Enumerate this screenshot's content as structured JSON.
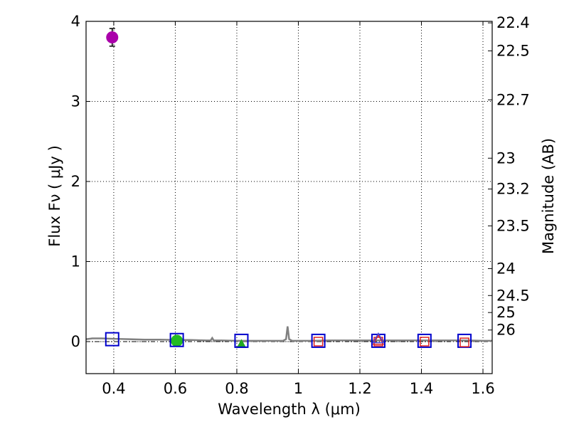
{
  "chart_data": {
    "type": "scatter",
    "title": "",
    "xlabel": "Wavelength  λ (μm)",
    "ylabel": "Flux  Fν  ( μJy )",
    "ylabel2": "Magnitude (AB)",
    "xlim": [
      0.31,
      1.63
    ],
    "ylim": [
      -0.4,
      4.0
    ],
    "grid": true,
    "x_ticks": [
      0.4,
      0.6,
      0.8,
      1.0,
      1.2,
      1.4,
      1.6
    ],
    "x_tick_labels": [
      "0.4",
      "0.6",
      "0.8",
      "1",
      "1.2",
      "1.4",
      "1.6"
    ],
    "y_ticks": [
      0,
      1,
      2,
      3,
      4
    ],
    "y_tick_labels": [
      "0",
      "1",
      "2",
      "3",
      "4"
    ],
    "y2_ticks": [
      22.4,
      22.5,
      22.7,
      23,
      23.2,
      23.5,
      24,
      24.5,
      25,
      26
    ],
    "y2_tick_labels": [
      "22.4",
      "22.5",
      "22.7",
      "23",
      "23.2",
      "23.5",
      "24",
      "24.5",
      "25",
      "26"
    ],
    "zero_reference_line": 0,
    "series": [
      {
        "name": "model spectrum",
        "kind": "line",
        "color": "#808080",
        "x": [
          0.31,
          0.33,
          0.36,
          0.4,
          0.45,
          0.5,
          0.55,
          0.6,
          0.65,
          0.7,
          0.715,
          0.72,
          0.725,
          0.75,
          0.8,
          0.85,
          0.9,
          0.95,
          0.96,
          0.965,
          0.97,
          0.98,
          1.0,
          1.05,
          1.1,
          1.15,
          1.2,
          1.25,
          1.3,
          1.35,
          1.4,
          1.45,
          1.5,
          1.55,
          1.6,
          1.63
        ],
        "y": [
          0.03,
          0.04,
          0.04,
          0.035,
          0.03,
          0.025,
          0.025,
          0.02,
          0.02,
          0.015,
          0.015,
          0.045,
          0.015,
          0.015,
          0.01,
          0.01,
          0.01,
          0.01,
          0.03,
          0.19,
          0.03,
          0.01,
          0.01,
          0.01,
          0.015,
          0.015,
          0.015,
          0.015,
          0.015,
          0.015,
          0.015,
          0.015,
          0.015,
          0.015,
          0.01,
          0.01
        ]
      },
      {
        "name": "observed flux (violet)",
        "kind": "points",
        "marker": "circle",
        "color": "#aa00aa",
        "x": [
          0.395
        ],
        "y": [
          3.8
        ],
        "yerr": [
          0.11
        ]
      },
      {
        "name": "observed flux (green)",
        "kind": "points",
        "marker": "circle",
        "color": "#22bb22",
        "x": [
          0.605
        ],
        "y": [
          0.01
        ],
        "yerr": [
          0.04
        ]
      },
      {
        "name": "upper limit",
        "kind": "points",
        "marker": "triangle-up",
        "color": "#22aa22",
        "x": [
          0.815
        ],
        "y": [
          -0.03
        ]
      },
      {
        "name": "model photometry",
        "kind": "points",
        "marker": "open-square",
        "color": "#0000cc",
        "x": [
          0.395,
          0.605,
          0.815,
          1.065,
          1.26,
          1.41,
          1.54
        ],
        "y": [
          0.03,
          0.02,
          0.01,
          0.01,
          0.01,
          0.01,
          0.01
        ]
      },
      {
        "name": "photometry (red, small)",
        "kind": "points",
        "marker": "open-square",
        "color": "#dd2222",
        "x": [
          1.065,
          1.26,
          1.41,
          1.54
        ],
        "y": [
          0.0,
          0.0,
          0.0,
          -0.01
        ]
      },
      {
        "name": "photometry (red, triangle)",
        "kind": "points",
        "marker": "open-triangle",
        "color": "#dd2222",
        "x": [
          1.26
        ],
        "y": [
          0.02
        ]
      },
      {
        "name": "photometry (blue, triangle)",
        "kind": "points",
        "marker": "open-triangle",
        "color": "#4444dd",
        "x": [
          1.26
        ],
        "y": [
          0.04
        ]
      }
    ]
  }
}
